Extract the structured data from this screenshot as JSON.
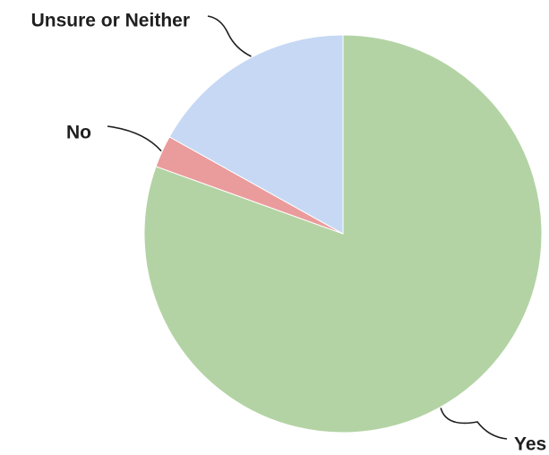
{
  "chart_data": {
    "type": "pie",
    "title": "",
    "start_angle_deg": 0,
    "direction": "clockwise",
    "slices": [
      {
        "label": "Yes",
        "value": 80.5,
        "color": "#b3d3a4"
      },
      {
        "label": "No",
        "value": 2.6,
        "color": "#ea9b9b"
      },
      {
        "label": "Unsure or Neither",
        "value": 16.9,
        "color": "#c6d8f4"
      }
    ],
    "data_labels_shown": false,
    "legend": "none"
  }
}
